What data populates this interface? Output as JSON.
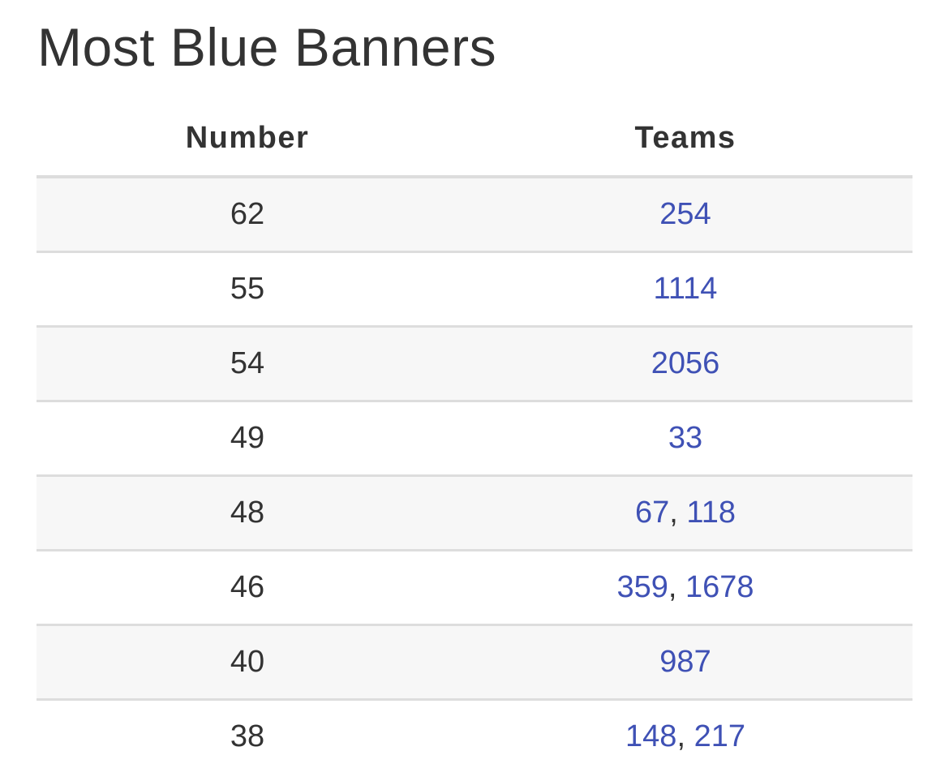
{
  "title": "Most Blue Banners",
  "colors": {
    "text": "#333333",
    "link": "#3f51b5",
    "stripe": "#f7f7f7",
    "border": "#dddddd"
  },
  "table": {
    "headers": [
      "Number",
      "Teams"
    ],
    "rows": [
      {
        "number": "62",
        "teams": [
          "254"
        ]
      },
      {
        "number": "55",
        "teams": [
          "1114"
        ]
      },
      {
        "number": "54",
        "teams": [
          "2056"
        ]
      },
      {
        "number": "49",
        "teams": [
          "33"
        ]
      },
      {
        "number": "48",
        "teams": [
          "67",
          "118"
        ]
      },
      {
        "number": "46",
        "teams": [
          "359",
          "1678"
        ]
      },
      {
        "number": "40",
        "teams": [
          "987"
        ]
      },
      {
        "number": "38",
        "teams": [
          "148",
          "217"
        ]
      }
    ]
  }
}
